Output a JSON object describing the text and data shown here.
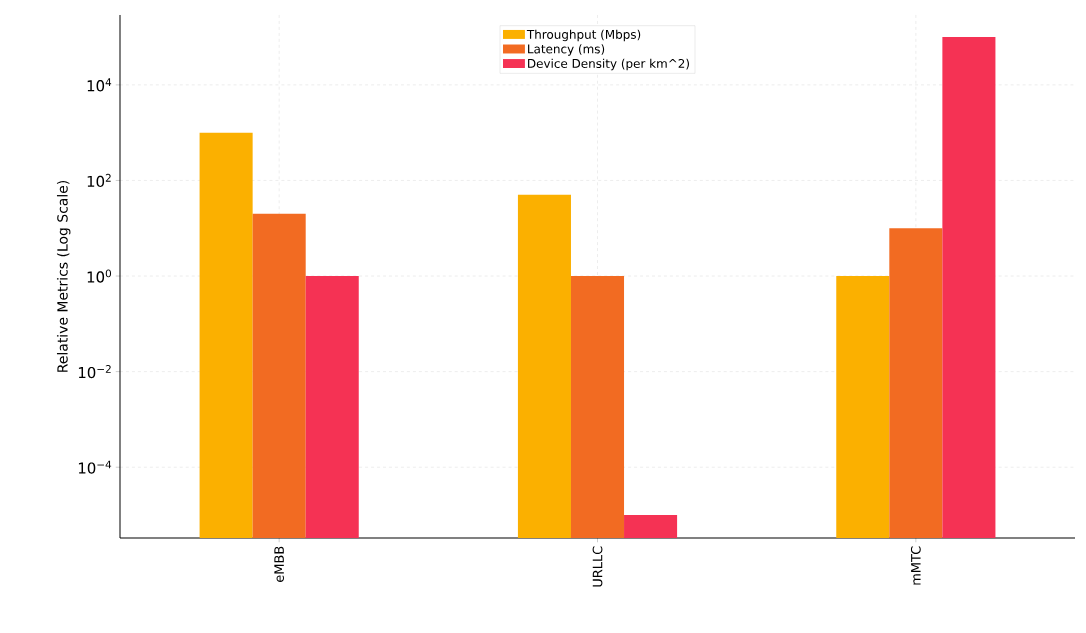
{
  "chart_data": {
    "type": "bar",
    "ylabel": "Relative Metrics (Log Scale)",
    "categories": [
      "eMBB",
      "URLLC",
      "mMTC"
    ],
    "series": [
      {
        "name": "Throughput (Mbps)",
        "color": "#fbb000",
        "values": [
          1000,
          50,
          1
        ]
      },
      {
        "name": "Latency (ms)",
        "color": "#f26b22",
        "values": [
          20,
          1,
          10
        ]
      },
      {
        "name": "Device Density (per km^2)",
        "color": "#f53254",
        "values": [
          1,
          1e-05,
          100000
        ]
      }
    ],
    "log": "y",
    "ylim": [
      3.3e-06,
      290000
    ],
    "yticks": [
      {
        "value": 0.0001,
        "label": "10$^{−4}$"
      },
      {
        "value": 0.01,
        "label": "10$^{−2}$"
      },
      {
        "value": 1,
        "label": "10$^{0}$"
      },
      {
        "value": 100,
        "label": "10$^{2}$"
      },
      {
        "value": 10000,
        "label": "10$^{4}$"
      }
    ],
    "grid": true,
    "legend": "top"
  }
}
